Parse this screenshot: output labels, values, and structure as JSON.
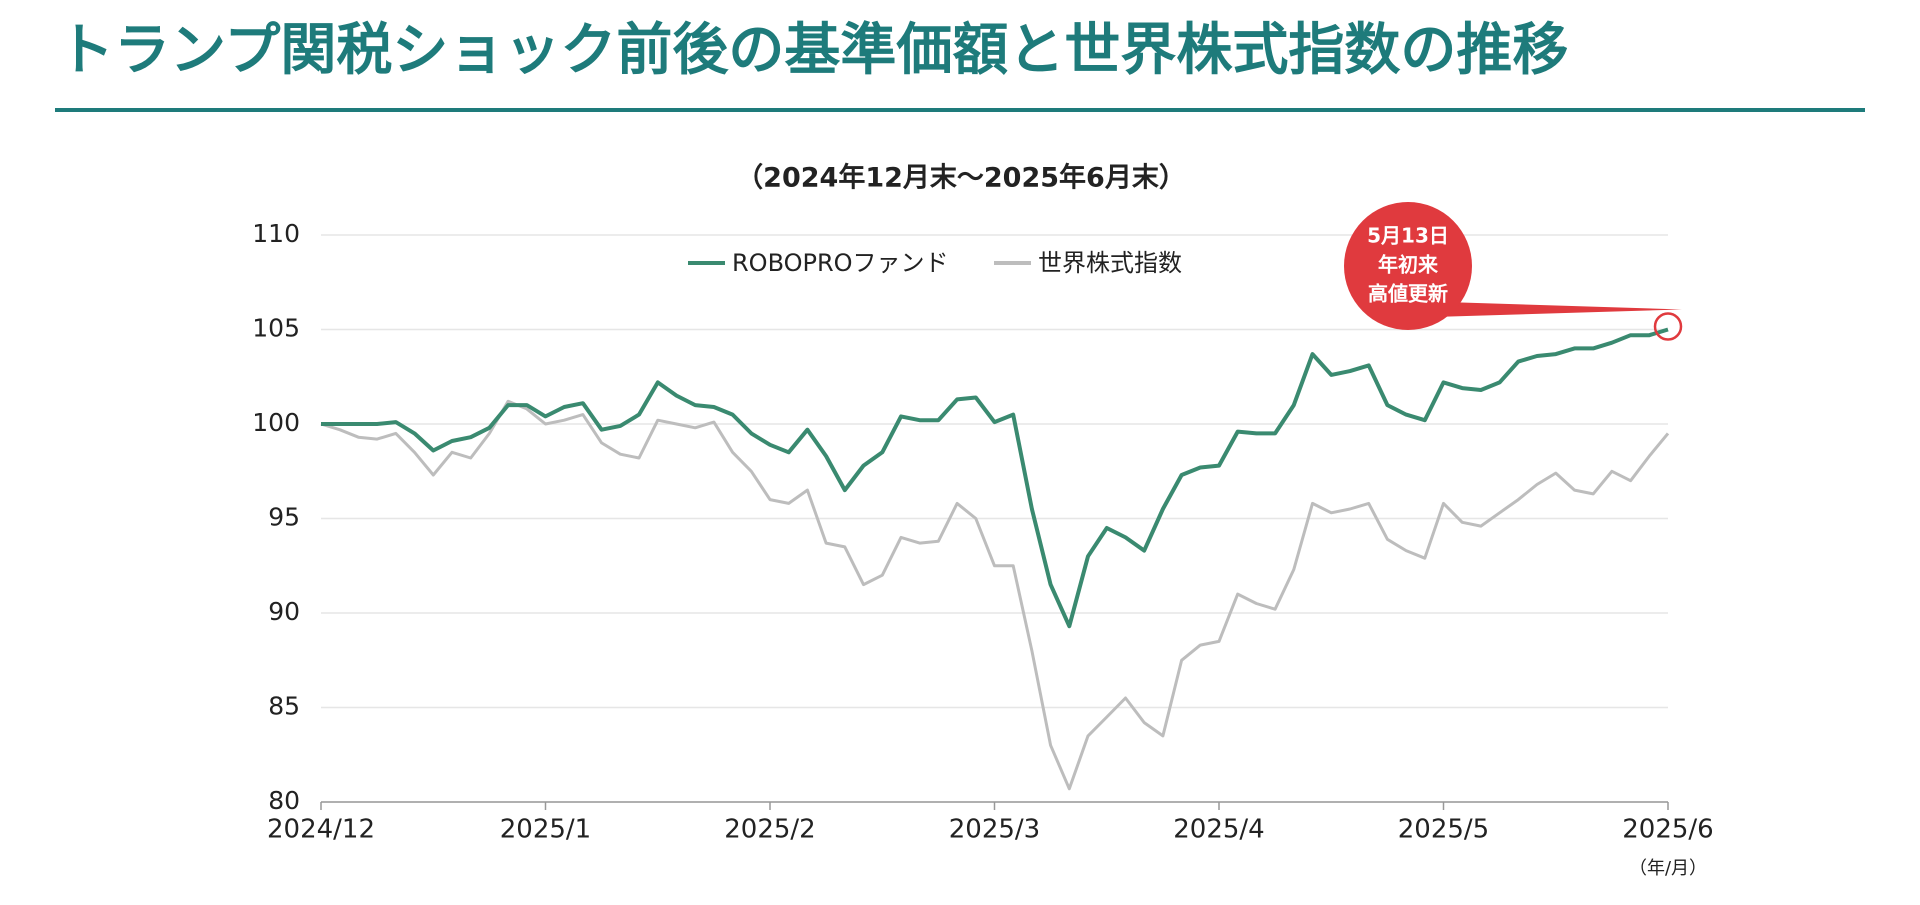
{
  "title": "トランプ関税ショック前後の基準価額と世界株式指数の推移",
  "chart_data": {
    "type": "line",
    "subtitle": "（2024年12月末〜2025年6月末）",
    "x_unit_label": "（年/月）",
    "categories": [
      "2024/12",
      null,
      null,
      null,
      null,
      null,
      null,
      null,
      null,
      null,
      null,
      null,
      "2025/1",
      null,
      null,
      null,
      null,
      null,
      null,
      null,
      null,
      null,
      null,
      null,
      "2025/2",
      null,
      null,
      null,
      null,
      null,
      null,
      null,
      null,
      null,
      null,
      null,
      "2025/3",
      null,
      null,
      null,
      null,
      null,
      null,
      null,
      null,
      null,
      null,
      null,
      "2025/4",
      null,
      null,
      null,
      null,
      null,
      null,
      null,
      null,
      null,
      null,
      null,
      "2025/5",
      null,
      null,
      null,
      null,
      null,
      null,
      null,
      null,
      null,
      null,
      null,
      "2025/6"
    ],
    "series": [
      {
        "name": "ROBOPROファンド",
        "color": "#3a8a70",
        "values": [
          100,
          100,
          100,
          100,
          100.1,
          99.5,
          98.6,
          99.1,
          99.3,
          99.8,
          101,
          101,
          100.4,
          100.9,
          101.1,
          99.7,
          99.9,
          100.5,
          102.2,
          101.5,
          101,
          100.9,
          100.5,
          99.5,
          98.9,
          98.5,
          99.7,
          98.3,
          96.5,
          97.8,
          98.5,
          100.4,
          100.2,
          100.2,
          101.3,
          101.4,
          100.1,
          100.5,
          95.5,
          91.5,
          89.3,
          93,
          94.5,
          94,
          93.3,
          95.5,
          97.3,
          97.7,
          97.8,
          99.6,
          99.5,
          99.5,
          101,
          103.7,
          102.6,
          102.8,
          103.1,
          101,
          100.5,
          100.2,
          102.2,
          101.9,
          101.8,
          102.2,
          103.3,
          103.6,
          103.7,
          104,
          104,
          104.3,
          104.7,
          104.7,
          105
        ]
      },
      {
        "name": "世界株式指数",
        "color": "#bdbdbd",
        "values": [
          100,
          99.7,
          99.3,
          99.2,
          99.5,
          98.5,
          97.3,
          98.5,
          98.2,
          99.5,
          101.2,
          100.8,
          100,
          100.2,
          100.5,
          99,
          98.4,
          98.2,
          100.2,
          100,
          99.8,
          100.1,
          98.5,
          97.5,
          96,
          95.8,
          96.5,
          93.7,
          93.5,
          91.5,
          92,
          94,
          93.7,
          93.8,
          95.8,
          95,
          92.5,
          92.5,
          88,
          83,
          80.7,
          83.5,
          84.5,
          85.5,
          84.2,
          83.5,
          87.5,
          88.3,
          88.5,
          91,
          90.5,
          90.2,
          92.3,
          95.8,
          95.3,
          95.5,
          95.8,
          93.9,
          93.3,
          92.9,
          95.8,
          94.8,
          94.6,
          95.3,
          96,
          96.8,
          97.4,
          96.5,
          96.3,
          97.5,
          97,
          98.3,
          99.5
        ]
      }
    ],
    "ylim": [
      80,
      110
    ],
    "yticks": [
      80,
      85,
      90,
      95,
      100,
      105,
      110
    ],
    "grid": true,
    "legend": "top",
    "annotation": {
      "lines": [
        "5月13日",
        "年初来",
        "高値更新"
      ],
      "color": "#e03a3e"
    }
  }
}
